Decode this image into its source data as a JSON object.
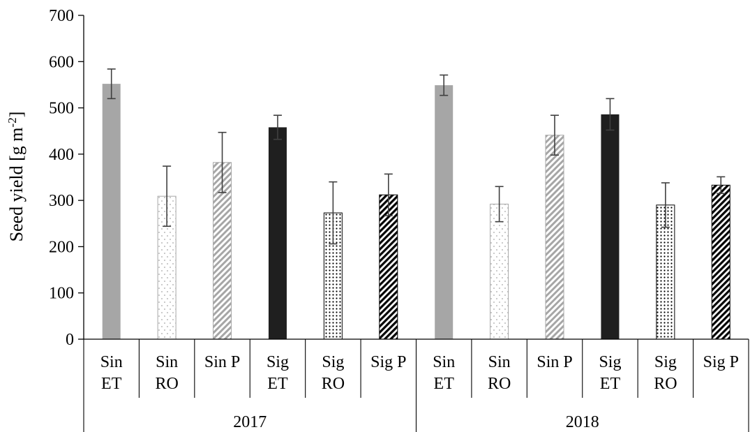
{
  "chart_data": {
    "type": "bar",
    "ylabel_main": "Seed yield [g m",
    "ylabel_sup": "-2",
    "ylabel_close": "]",
    "ylim": [
      0,
      700
    ],
    "yticks": [
      0,
      100,
      200,
      300,
      400,
      500,
      600,
      700
    ],
    "groups": [
      {
        "label": "2017",
        "bars": [
          {
            "line1": "Sin",
            "line2": "ET",
            "value": 552,
            "err": 32,
            "pattern": "solid-gray"
          },
          {
            "line1": "Sin",
            "line2": "RO",
            "value": 309,
            "err": 65,
            "pattern": "sparse-dots"
          },
          {
            "line1": "Sin P",
            "line2": "",
            "value": 382,
            "err": 65,
            "pattern": "diag-gray"
          },
          {
            "line1": "Sig",
            "line2": "ET",
            "value": 458,
            "err": 26,
            "pattern": "solid-black"
          },
          {
            "line1": "Sig",
            "line2": "RO",
            "value": 273,
            "err": 67,
            "pattern": "dense-dots"
          },
          {
            "line1": "Sig P",
            "line2": "",
            "value": 312,
            "err": 45,
            "pattern": "diag-black"
          }
        ]
      },
      {
        "label": "2018",
        "bars": [
          {
            "line1": "Sin",
            "line2": "ET",
            "value": 549,
            "err": 22,
            "pattern": "solid-gray"
          },
          {
            "line1": "Sin",
            "line2": "RO",
            "value": 292,
            "err": 38,
            "pattern": "sparse-dots"
          },
          {
            "line1": "Sin P",
            "line2": "",
            "value": 441,
            "err": 43,
            "pattern": "diag-gray"
          },
          {
            "line1": "Sig",
            "line2": "ET",
            "value": 486,
            "err": 34,
            "pattern": "solid-black"
          },
          {
            "line1": "Sig",
            "line2": "RO",
            "value": 290,
            "err": 48,
            "pattern": "dense-dots"
          },
          {
            "line1": "Sig P",
            "line2": "",
            "value": 333,
            "err": 18,
            "pattern": "diag-black"
          }
        ]
      }
    ],
    "colors": {
      "solid_gray": "#a6a6a6",
      "solid_black": "#1f1f1f",
      "pattern_gray": "#a6a6a6",
      "pattern_black": "#000000",
      "error_bar": "#404040",
      "axis": "#000000"
    }
  }
}
